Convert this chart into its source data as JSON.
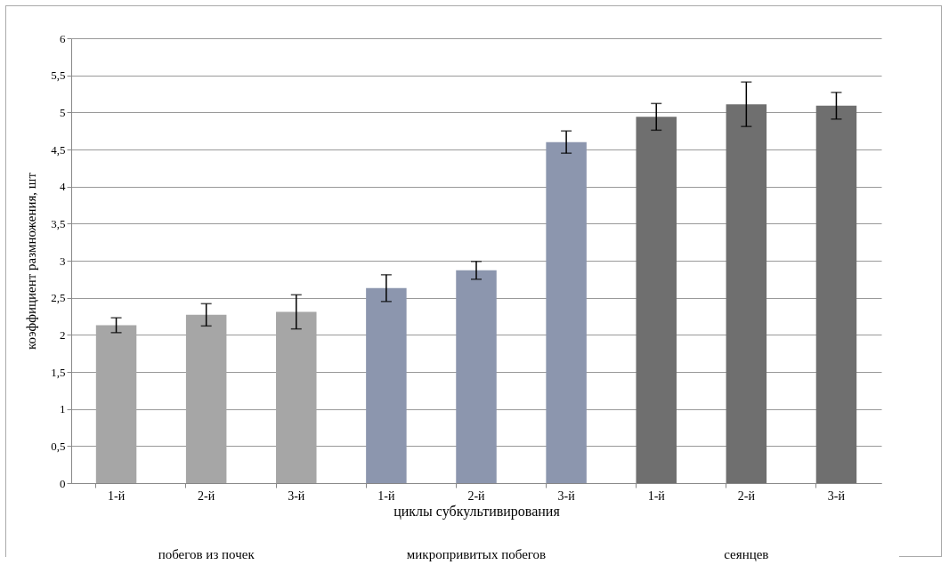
{
  "chart_data": {
    "type": "bar",
    "xlabel": "циклы субкультивирования",
    "ylabel": "коэффициент размножения, шт",
    "categories": [
      "1-й",
      "2-й",
      "3-й",
      "1-й",
      "2-й",
      "3-й",
      "1-й",
      "2-й",
      "3-й"
    ],
    "values": [
      2.13,
      2.27,
      2.31,
      2.63,
      2.87,
      4.6,
      4.94,
      5.11,
      5.09
    ],
    "errors": [
      0.1,
      0.15,
      0.23,
      0.18,
      0.12,
      0.15,
      0.18,
      0.3,
      0.18
    ],
    "colors": [
      "#a6a6a6",
      "#a6a6a6",
      "#a6a6a6",
      "#8c96ae",
      "#8c96ae",
      "#8c96ae",
      "#6f6f6f",
      "#6f6f6f",
      "#6f6f6f"
    ],
    "ylim": [
      0,
      6
    ],
    "yticks": [
      0,
      {
        "value": 0.5,
        "label": "0,5"
      },
      1,
      {
        "value": 1.5,
        "label": "1,5"
      },
      2,
      {
        "value": 2.5,
        "label": "2,5"
      },
      3,
      {
        "value": 3.5,
        "label": "3,5"
      },
      4,
      {
        "value": 4.5,
        "label": "4,5"
      },
      5,
      {
        "value": 5.5,
        "label": "5,5"
      },
      6
    ],
    "grid": "y",
    "annotations": [
      "побегов из почек",
      "микропривитых побегов",
      "сеянцев"
    ]
  }
}
